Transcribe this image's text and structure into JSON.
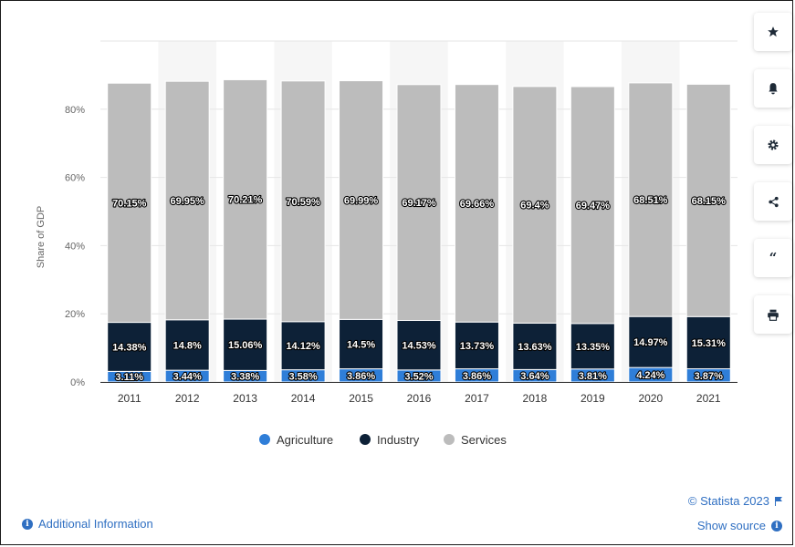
{
  "chart_data": {
    "type": "bar",
    "stacked": true,
    "categories": [
      "2011",
      "2012",
      "2013",
      "2014",
      "2015",
      "2016",
      "2017",
      "2018",
      "2019",
      "2020",
      "2021"
    ],
    "series": [
      {
        "name": "Agriculture",
        "color": "#2f7ed8",
        "values": [
          3.11,
          3.44,
          3.38,
          3.58,
          3.86,
          3.52,
          3.86,
          3.64,
          3.81,
          4.24,
          3.87
        ],
        "labels": [
          "3.11%",
          "3.44%",
          "3.38%",
          "3.58%",
          "3.86%",
          "3.52%",
          "3.86%",
          "3.64%",
          "3.81%",
          "4.24%",
          "3.87%"
        ]
      },
      {
        "name": "Industry",
        "color": "#0d2137",
        "values": [
          14.38,
          14.8,
          15.06,
          14.12,
          14.5,
          14.53,
          13.73,
          13.63,
          13.35,
          14.97,
          15.31
        ],
        "labels": [
          "14.38%",
          "14.8%",
          "15.06%",
          "14.12%",
          "14.5%",
          "14.53%",
          "13.73%",
          "13.63%",
          "13.35%",
          "14.97%",
          "15.31%"
        ]
      },
      {
        "name": "Services",
        "color": "#bcbcbc",
        "values": [
          70.15,
          69.95,
          70.21,
          70.59,
          69.99,
          69.17,
          69.66,
          69.4,
          69.47,
          68.51,
          68.15
        ],
        "labels": [
          "70.15%",
          "69.95%",
          "70.21%",
          "70.59%",
          "69.99%",
          "69.17%",
          "69.66%",
          "69.4%",
          "69.47%",
          "68.51%",
          "68.15%"
        ]
      }
    ],
    "ylabel": "Share of GDP",
    "ylim": [
      0,
      100
    ],
    "yticks": [
      0,
      20,
      40,
      60,
      80
    ],
    "ytick_labels": [
      "0%",
      "20%",
      "40%",
      "60%",
      "80%"
    ],
    "grid": true,
    "legend_position": "bottom"
  },
  "footer": {
    "credit": "© Statista 2023",
    "show_source": "Show source",
    "additional_info": "Additional Information"
  },
  "tools": [
    "star-icon",
    "bell-icon",
    "gear-icon",
    "share-icon",
    "quote-icon",
    "print-icon"
  ]
}
